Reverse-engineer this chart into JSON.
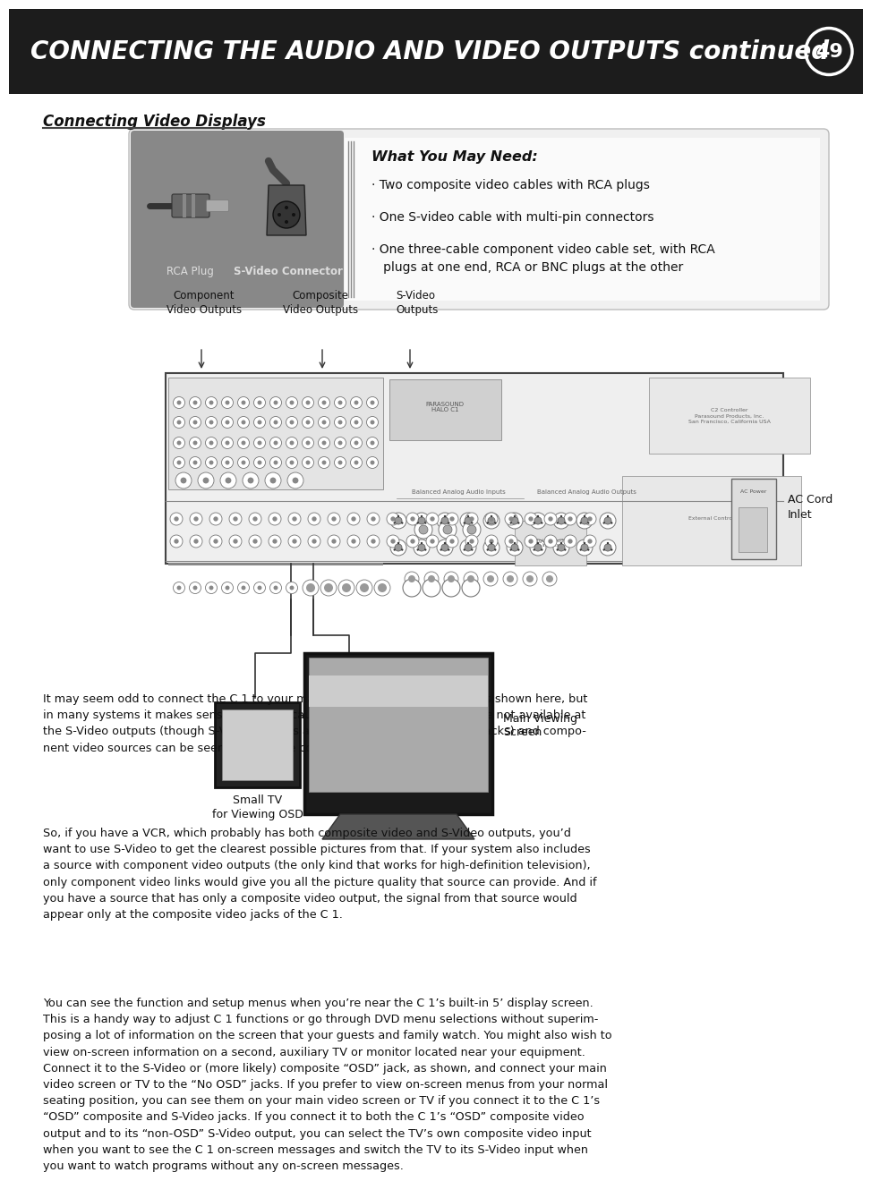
{
  "page_bg": "#ffffff",
  "header_bg": "#1c1c1c",
  "header_text": "CONNECTING THE AUDIO AND VIDEO OUTPUTS continued",
  "header_text_color": "#ffffff",
  "page_number": "49",
  "section_title": "Connecting Video Displays",
  "what_you_need_title": "What You May Need:",
  "what_you_need_items": [
    "· Two composite video cables with RCA plugs",
    "· One S-video cable with multi-pin connectors",
    "· One three-cable component video cable set, with RCA\n   plugs at one end, RCA or BNC plugs at the other"
  ],
  "rca_label": "RCA Plug",
  "svideo_label": "S-Video Connector",
  "diagram_labels": {
    "component": "Component\nVideo Outputs",
    "composite": "Composite\nVideo Outputs",
    "svideo": "S-Video\nOutputs",
    "ac_cord": "AC Cord\nInlet",
    "main_screen": "Main Viewing\nScreen",
    "small_tv": "Small TV\nfor Viewing OSD"
  },
  "body_paragraphs": [
    "It may seem odd to connect the C 1 to your main video display three ways, as shown here, but in many systems it makes sense. This is because composite video sources are not available at the S-Video outputs (though S-Video sources are available at the composite jacks) and compo-nent video sources can be seen only via the component video outputs.",
    "So, if you have a VCR, which probably has both composite video and S-Video outputs, you’d want to use S-Video to get the clearest possible pictures from that. If your system also includes a source with component video outputs (the only kind that works for high-definition television), only component video links would give you all the picture quality that source can provide. And if you have a source that has only a composite video output, the signal from that source would appear only at the composite video jacks of the C 1.",
    "You can see the function and setup menus when you’re near the C 1’s built-in 5’ display screen. This is a handy way to adjust C 1 functions or go through DVD menu selections without superim-posing a lot of information on the screen that your guests and family watch. You might also wish to view on-screen information on a second, auxiliary TV or monitor located near your equipment. Connect it to the S-Video or (more likely) composite “OSD” jack, as shown, and connect your main video screen or TV to the “No OSD” jacks. If you prefer to view on-screen menus from your normal seating position, you can see them on your main video screen or TV if you connect it to the C 1’s “OSD” composite and S-Video jacks. If you connect it to both the C 1’s “OSD” composite video output and to its “non-OSD” S-Video output, you can select the TV’s own composite video input when you want to see the C 1 on-screen messages and switch the TV to its S-Video input when you want to watch programs without any on-screen messages."
  ],
  "gray_box_color": "#888888",
  "light_gray": "#e8e8e8",
  "white_box_color": "#f8f8f8"
}
